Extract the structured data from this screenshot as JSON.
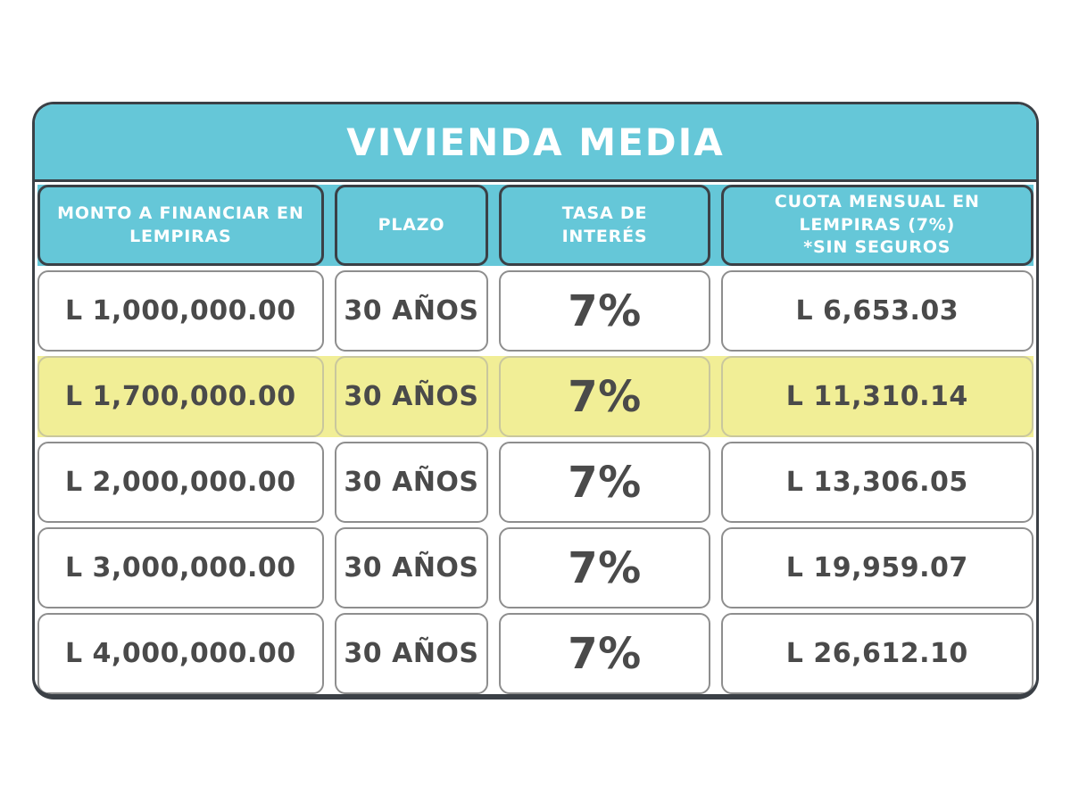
{
  "colors": {
    "teal": "#65C7D8",
    "highlight_yellow": "#F1EE96",
    "text_dark": "#4A4A4A",
    "border_dark": "#3B4046",
    "cell_border": "#8E8E8E",
    "header_text": "#FFFFFF"
  },
  "table": {
    "title": "VIVIENDA MEDIA",
    "columns": [
      "MONTO A FINANCIAR EN\nLEMPIRAS",
      "PLAZO",
      "TASA DE\nINTERÉS",
      "CUOTA MENSUAL EN\nLEMPIRAS (7%)\n*SIN SEGUROS"
    ],
    "rows": [
      {
        "highlighted": false,
        "cells": [
          "L 1,000,000.00",
          "30 AÑOS",
          "7%",
          "L 6,653.03"
        ]
      },
      {
        "highlighted": true,
        "cells": [
          "L 1,700,000.00",
          "30 AÑOS",
          "7%",
          "L 11,310.14"
        ]
      },
      {
        "highlighted": false,
        "cells": [
          "L 2,000,000.00",
          "30 AÑOS",
          "7%",
          "L 13,306.05"
        ]
      },
      {
        "highlighted": false,
        "cells": [
          "L 3,000,000.00",
          "30 AÑOS",
          "7%",
          "L 19,959.07"
        ]
      },
      {
        "highlighted": false,
        "cells": [
          "L 4,000,000.00",
          "30 AÑOS",
          "7%",
          "L 26,612.10"
        ]
      }
    ]
  },
  "chart_data": {
    "type": "table",
    "title": "VIVIENDA MEDIA",
    "columns": [
      "MONTO A FINANCIAR EN LEMPIRAS",
      "PLAZO",
      "TASA DE INTERÉS",
      "CUOTA MENSUAL EN LEMPIRAS (7%) *SIN SEGUROS"
    ],
    "rows": [
      [
        "L 1,000,000.00",
        "30 AÑOS",
        "7%",
        "L 6,653.03"
      ],
      [
        "L 1,700,000.00",
        "30 AÑOS",
        "7%",
        "L 11,310.14"
      ],
      [
        "L 2,000,000.00",
        "30 AÑOS",
        "7%",
        "L 13,306.05"
      ],
      [
        "L 3,000,000.00",
        "30 AÑOS",
        "7%",
        "L 19,959.07"
      ],
      [
        "L 4,000,000.00",
        "30 AÑOS",
        "7%",
        "L 26,612.10"
      ]
    ],
    "highlighted_row_index": 1
  }
}
